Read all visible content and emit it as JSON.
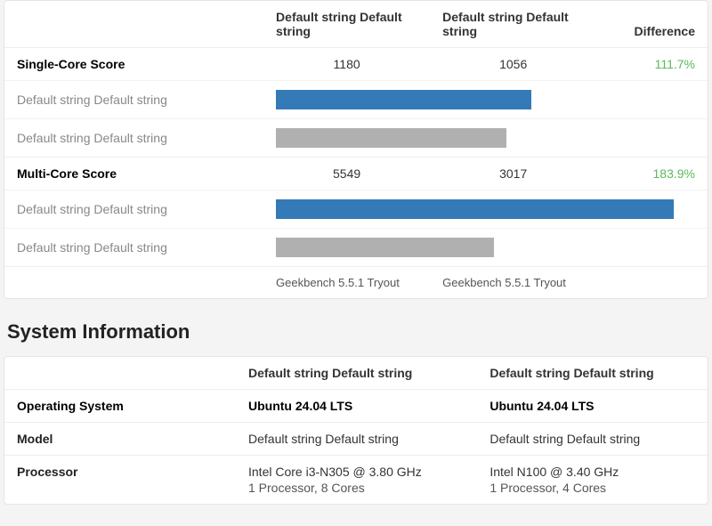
{
  "scores": {
    "header": {
      "system_a": "Default string Default string",
      "system_b": "Default string Default string",
      "difference": "Difference"
    },
    "single": {
      "label": "Single-Core Score",
      "a": "1180",
      "b": "1056",
      "diff": "111.7%",
      "bar_a_label": "Default string Default string",
      "bar_b_label": "Default string Default string",
      "bar_a_pct": 61,
      "bar_b_pct": 55,
      "color_a": "#337ab7",
      "color_b": "#b0b0b0"
    },
    "multi": {
      "label": "Multi-Core Score",
      "a": "5549",
      "b": "3017",
      "diff": "183.9%",
      "bar_a_label": "Default string Default string",
      "bar_b_label": "Default string Default string",
      "bar_a_pct": 95,
      "bar_b_pct": 52,
      "color_a": "#337ab7",
      "color_b": "#b0b0b0"
    },
    "footer": {
      "a": "Geekbench 5.5.1 Tryout",
      "b": "Geekbench 5.5.1 Tryout"
    }
  },
  "sysinfo": {
    "title": "System Information",
    "header": {
      "col_a": "Default string Default string",
      "col_b": "Default string Default string"
    },
    "rows": {
      "os": {
        "label": "Operating System",
        "a": "Ubuntu 24.04 LTS",
        "b": "Ubuntu 24.04 LTS"
      },
      "model": {
        "label": "Model",
        "a": "Default string Default string",
        "b": "Default string Default string"
      },
      "processor": {
        "label": "Processor",
        "a_line1": "Intel Core i3-N305 @ 3.80 GHz",
        "a_line2": "1 Processor, 8 Cores",
        "b_line1": "Intel N100 @ 3.40 GHz",
        "b_line2": "1 Processor, 4 Cores"
      }
    }
  },
  "style": {
    "diff_color": "#5cb85c",
    "card_bg": "#ffffff",
    "page_bg": "#f4f4f4",
    "border_color": "#e5e5e5"
  }
}
